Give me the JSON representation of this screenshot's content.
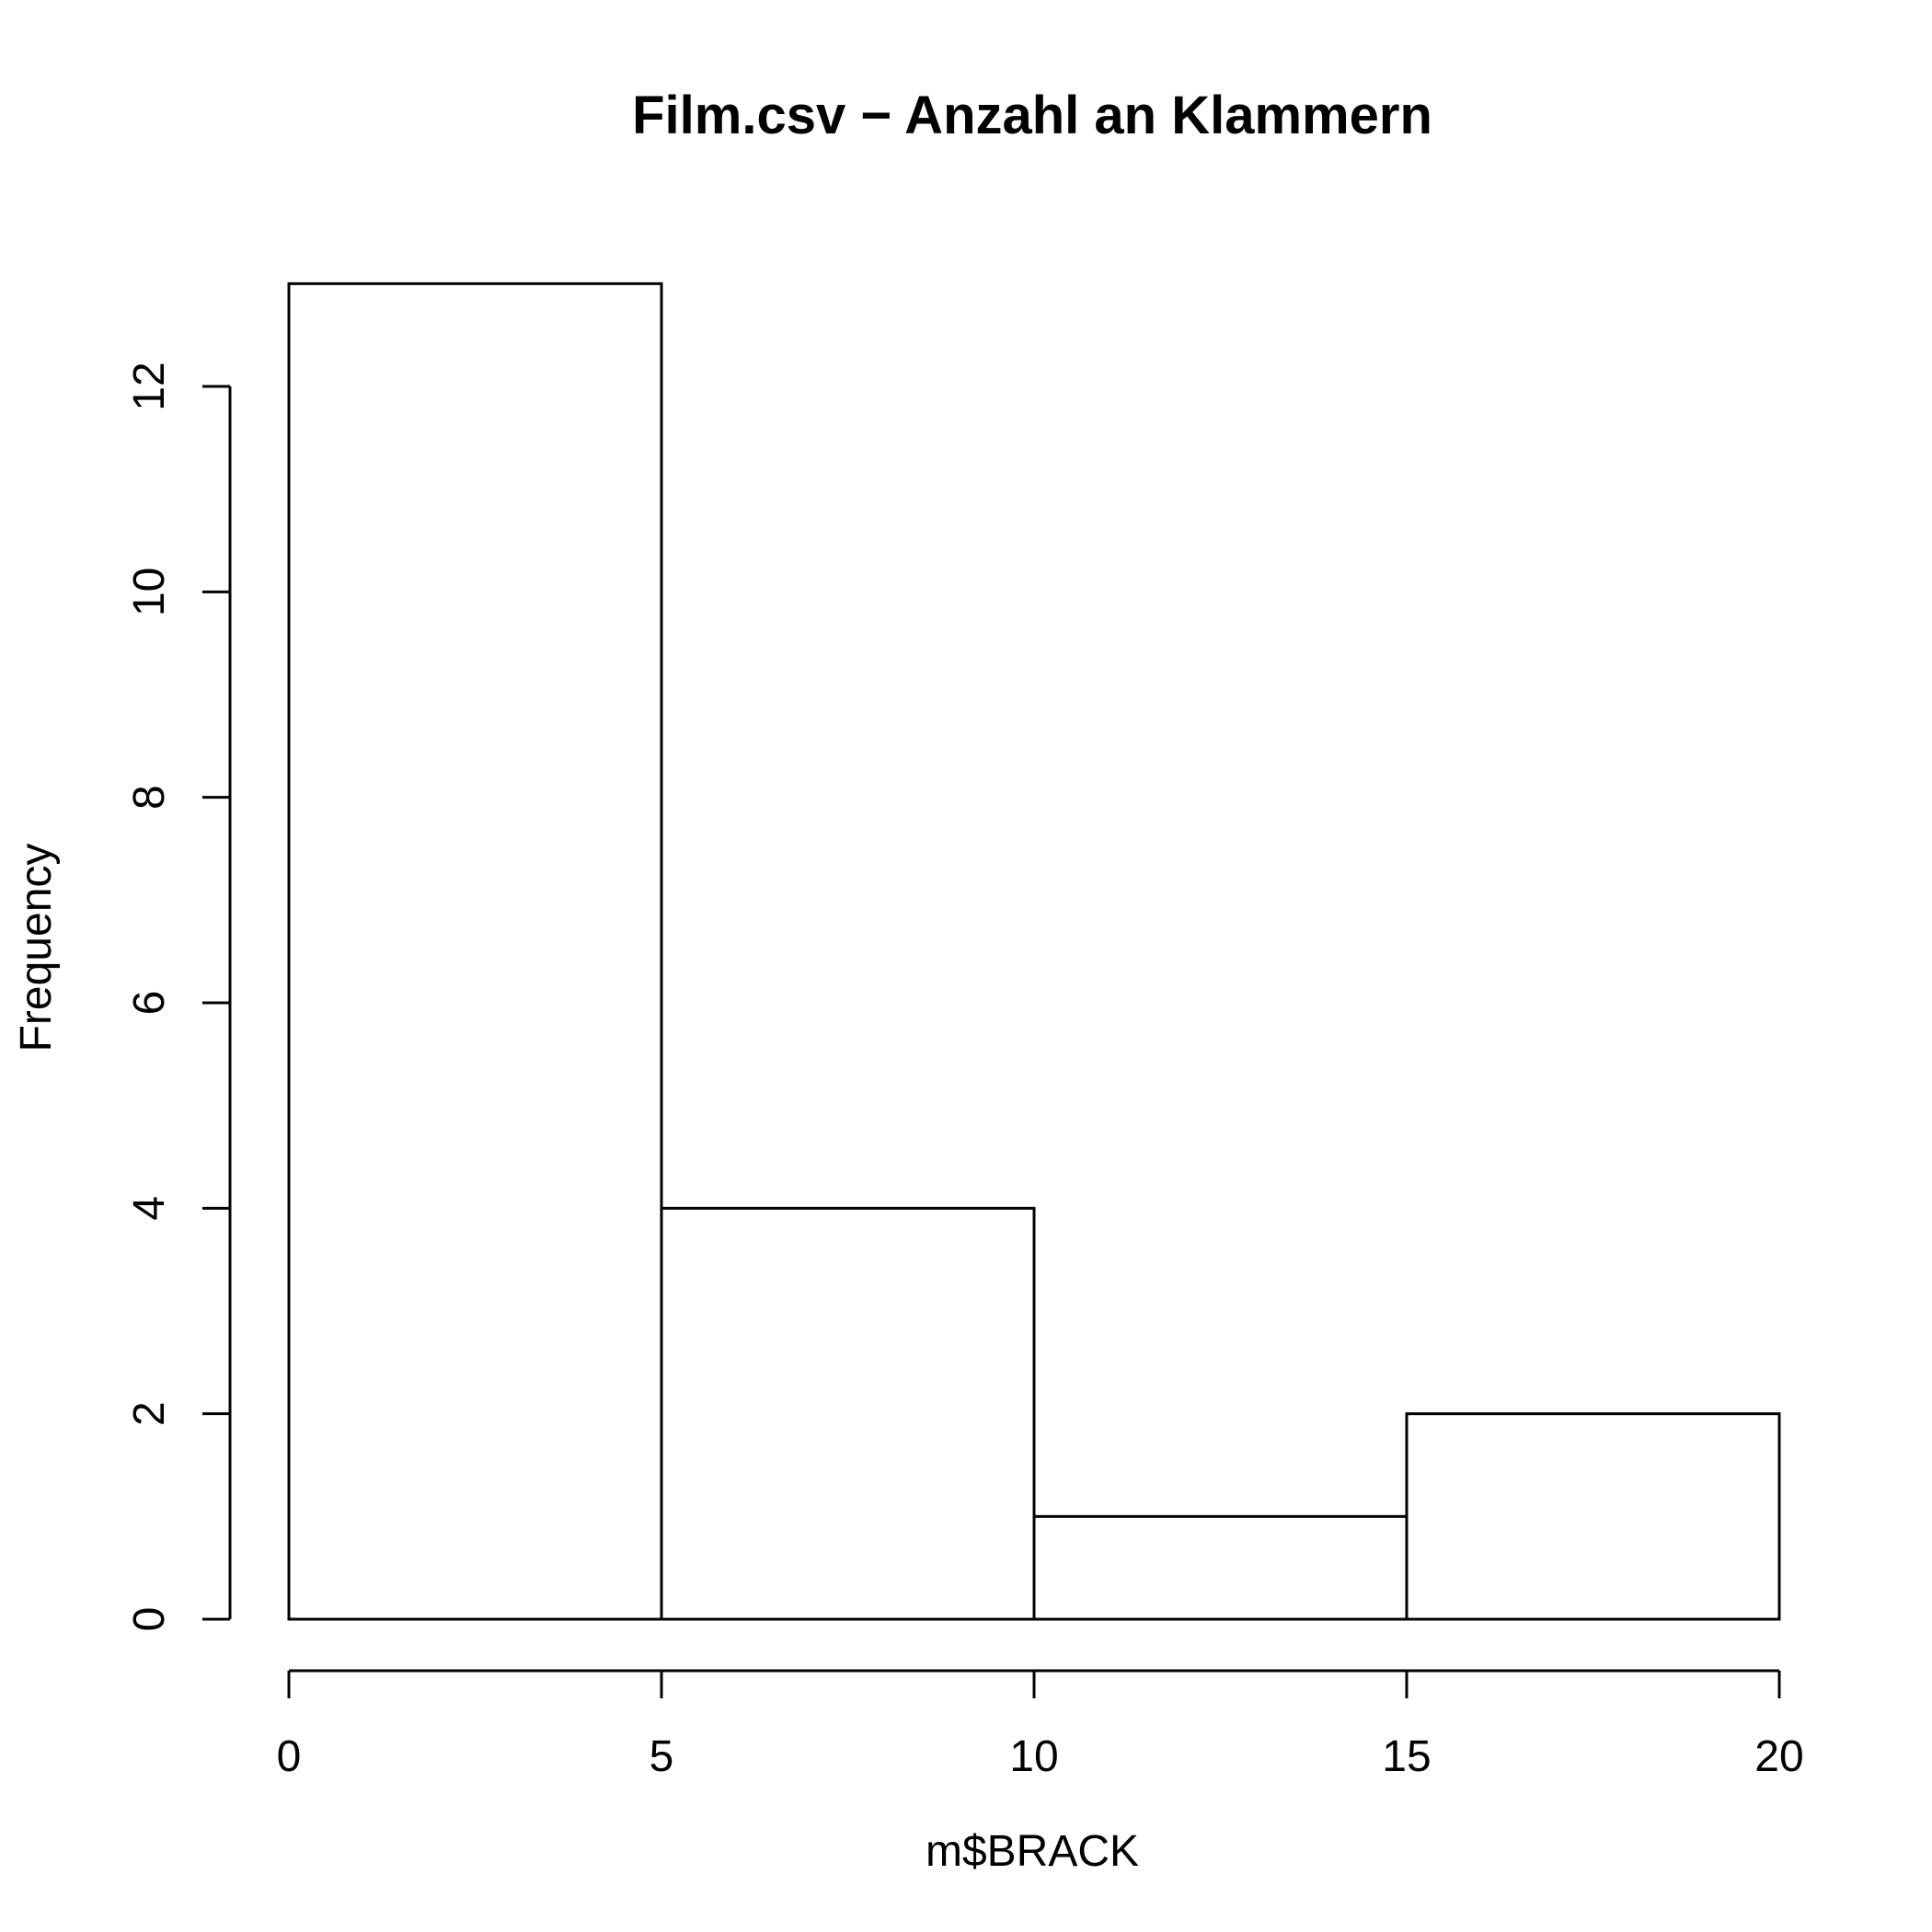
{
  "chart_data": {
    "type": "histogram",
    "title": "Film.csv − Anzahl an Klammern",
    "xlabel": "m$BRACK",
    "ylabel": "Frequency",
    "bins": [
      {
        "start": 0,
        "end": 5,
        "count": 13
      },
      {
        "start": 5,
        "end": 10,
        "count": 4
      },
      {
        "start": 10,
        "end": 15,
        "count": 1
      },
      {
        "start": 15,
        "end": 20,
        "count": 2
      }
    ],
    "xlim": [
      0,
      20
    ],
    "ylim": [
      0,
      13
    ],
    "x_ticks": [
      0,
      5,
      10,
      15,
      20
    ],
    "y_ticks": [
      0,
      2,
      4,
      6,
      8,
      10,
      12
    ],
    "grid": false,
    "colors": {
      "bar_fill": "#ffffff",
      "bar_stroke": "#000000"
    }
  }
}
